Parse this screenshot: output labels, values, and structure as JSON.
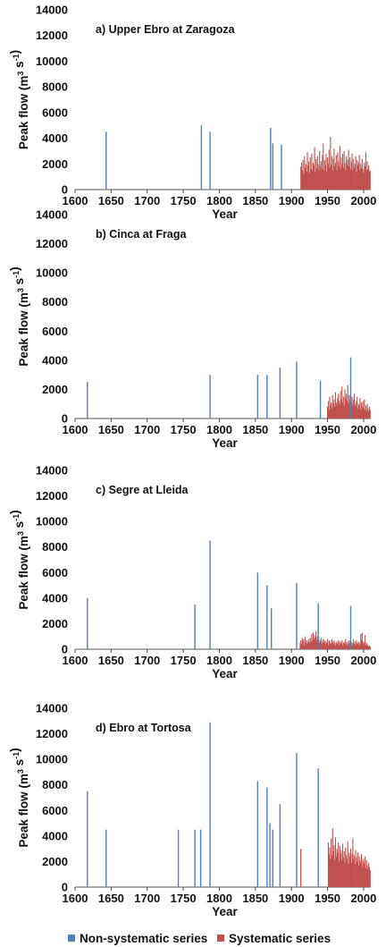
{
  "chart_data": [
    {
      "type": "bar",
      "title": "a) Upper Ebro at Zaragoza",
      "xlabel": "Year",
      "ylabel": "Peak flow (m3 s-1)",
      "xlim": [
        1600,
        2010
      ],
      "ylim": [
        0,
        14000
      ],
      "xticks": [
        1600,
        1650,
        1700,
        1750,
        1800,
        1850,
        1900,
        1950,
        2000
      ],
      "yticks": [
        0,
        2000,
        4000,
        6000,
        8000,
        10000,
        12000,
        14000
      ],
      "series": [
        {
          "name": "Non-systematic series",
          "x": [
            1643,
            1775,
            1787,
            1871,
            1874,
            1886
          ],
          "values": [
            4500,
            5000,
            4500,
            4800,
            3600,
            3500
          ]
        },
        {
          "name": "Systematic series",
          "x_start": 1913,
          "x_end": 2009,
          "values": [
            1800,
            2100,
            1500,
            2300,
            1200,
            2600,
            1700,
            2000,
            1400,
            2900,
            1900,
            2200,
            1300,
            2500,
            1600,
            2800,
            1500,
            2100,
            1900,
            3300,
            1400,
            2400,
            1700,
            2600,
            2000,
            1500,
            3000,
            1800,
            2200,
            1600,
            2700,
            3600,
            1500,
            2300,
            1900,
            2800,
            1400,
            2500,
            2000,
            3100,
            1700,
            4100,
            1900,
            2600,
            1500,
            2400,
            3200,
            1800,
            2100,
            2700,
            1500,
            2900,
            2200,
            1800,
            3400,
            1600,
            2500,
            2000,
            2800,
            1700,
            3000,
            2100,
            1500,
            2600,
            1900,
            2300,
            3100,
            1800,
            2500,
            1600,
            2200,
            2800,
            1500,
            2400,
            1700,
            2000,
            2600,
            1400,
            2300,
            1900,
            2100,
            2700,
            1500,
            2000,
            1700,
            2400,
            1600,
            1300,
            2100,
            1800,
            2900,
            1500,
            2200,
            1600,
            1900,
            1400,
            1500
          ]
        }
      ]
    },
    {
      "type": "bar",
      "title": "b) Cinca at Fraga",
      "xlabel": "Year",
      "ylabel": "Peak flow (m3 s-1)",
      "xlim": [
        1600,
        2010
      ],
      "ylim": [
        0,
        14000
      ],
      "xticks": [
        1600,
        1650,
        1700,
        1750,
        1800,
        1850,
        1900,
        1950,
        2000
      ],
      "yticks": [
        0,
        2000,
        4000,
        6000,
        8000,
        10000,
        12000,
        14000
      ],
      "series": [
        {
          "name": "Non-systematic series",
          "x": [
            1617,
            1787,
            1853,
            1866,
            1884,
            1907,
            1940,
            1982
          ],
          "values": [
            2500,
            3000,
            3000,
            3000,
            3500,
            3900,
            2600,
            4200
          ]
        },
        {
          "name": "Systematic series",
          "x_start": 1950,
          "x_end": 2009,
          "values": [
            800,
            1200,
            600,
            1500,
            900,
            1100,
            700,
            1600,
            1000,
            1300,
            800,
            1800,
            1100,
            900,
            1400,
            1700,
            1200,
            1000,
            1900,
            1300,
            2200,
            1100,
            1500,
            900,
            2000,
            1400,
            1700,
            1200,
            2300,
            1000,
            1600,
            1300,
            2400,
            1100,
            1500,
            900,
            1300,
            1700,
            1000,
            800,
            1200,
            1500,
            700,
            1000,
            900,
            1400,
            600,
            1100,
            800,
            1200,
            700,
            1300,
            600,
            900,
            500,
            1000,
            700,
            500,
            800,
            600
          ]
        }
      ]
    },
    {
      "type": "bar",
      "title": "c) Segre at Lleida",
      "xlabel": "Year",
      "ylabel": "Peak flow (m3 s-1)",
      "xlim": [
        1600,
        2010
      ],
      "ylim": [
        0,
        14000
      ],
      "xticks": [
        1600,
        1650,
        1700,
        1750,
        1800,
        1850,
        1900,
        1950,
        2000
      ],
      "yticks": [
        0,
        2000,
        4000,
        6000,
        8000,
        10000,
        12000,
        14000
      ],
      "series": [
        {
          "name": "Non-systematic series",
          "x": [
            1617,
            1766,
            1787,
            1853,
            1866,
            1872,
            1907,
            1937,
            1982
          ],
          "values": [
            4000,
            3500,
            8500,
            6000,
            5000,
            3200,
            5200,
            3600,
            3400
          ]
        },
        {
          "name": "Systematic series",
          "x_start": 1912,
          "x_end": 2009,
          "values": [
            500,
            700,
            400,
            900,
            600,
            800,
            300,
            1000,
            500,
            700,
            400,
            600,
            800,
            500,
            900,
            600,
            1200,
            700,
            1300,
            800,
            1100,
            900,
            1400,
            700,
            1000,
            600,
            800,
            500,
            700,
            900,
            400,
            600,
            800,
            500,
            700,
            400,
            600,
            500,
            800,
            300,
            600,
            700,
            400,
            500,
            800,
            600,
            400,
            700,
            500,
            300,
            600,
            400,
            500,
            700,
            300,
            600,
            500,
            400,
            700,
            300,
            500,
            600,
            400,
            800,
            500,
            300,
            600,
            400,
            700,
            500,
            400,
            600,
            300,
            500,
            800,
            400,
            600,
            300,
            700,
            500,
            400,
            600,
            300,
            500,
            1200,
            700,
            1300,
            500,
            600,
            400,
            1100,
            300,
            500,
            400,
            300,
            200,
            300,
            200
          ]
        }
      ]
    },
    {
      "type": "bar",
      "title": "d) Ebro at Tortosa",
      "xlabel": "Year",
      "ylabel": "Peak flow (m3 s-1)",
      "xlim": [
        1600,
        2010
      ],
      "ylim": [
        0,
        14000
      ],
      "xticks": [
        1600,
        1650,
        1700,
        1750,
        1800,
        1850,
        1900,
        1950,
        2000
      ],
      "yticks": [
        0,
        2000,
        4000,
        6000,
        8000,
        10000,
        12000,
        14000
      ],
      "series": [
        {
          "name": "Non-systematic series",
          "x": [
            1617,
            1643,
            1743,
            1766,
            1774,
            1787,
            1853,
            1866,
            1870,
            1874,
            1884,
            1907,
            1937
          ],
          "values": [
            7500,
            4500,
            4500,
            4500,
            4500,
            12900,
            8300,
            7800,
            5000,
            4500,
            6500,
            10500,
            9300
          ]
        },
        {
          "name": "Systematic series",
          "x_start": 1951,
          "x_end": 2009,
          "values": [
            3500,
            2600,
            3100,
            2200,
            3800,
            2500,
            4600,
            2800,
            3300,
            2100,
            3900,
            2400,
            3000,
            2700,
            3500,
            2000,
            3200,
            2600,
            2900,
            2100,
            3400,
            2300,
            2800,
            1900,
            3100,
            2500,
            2200,
            3600,
            1800,
            2700,
            2400,
            3000,
            1900,
            2600,
            3800,
            2200,
            2500,
            1800,
            2900,
            2300,
            2000,
            2700,
            1700,
            2400,
            2100,
            1900,
            2600,
            1600,
            2200,
            2000,
            1800,
            2400,
            1500,
            2100,
            1700,
            1400,
            1900,
            1600,
            1300
          ],
          "extra": {
            "x": [
              1913
            ],
            "values": [
              3000
            ]
          }
        }
      ]
    }
  ],
  "legend": [
    {
      "label": "Non-systematic series",
      "color": "#4f81bd"
    },
    {
      "label": "Systematic series",
      "color": "#c0504d"
    }
  ],
  "colors": {
    "non_systematic": "#4f81bd",
    "systematic": "#c0504d"
  }
}
